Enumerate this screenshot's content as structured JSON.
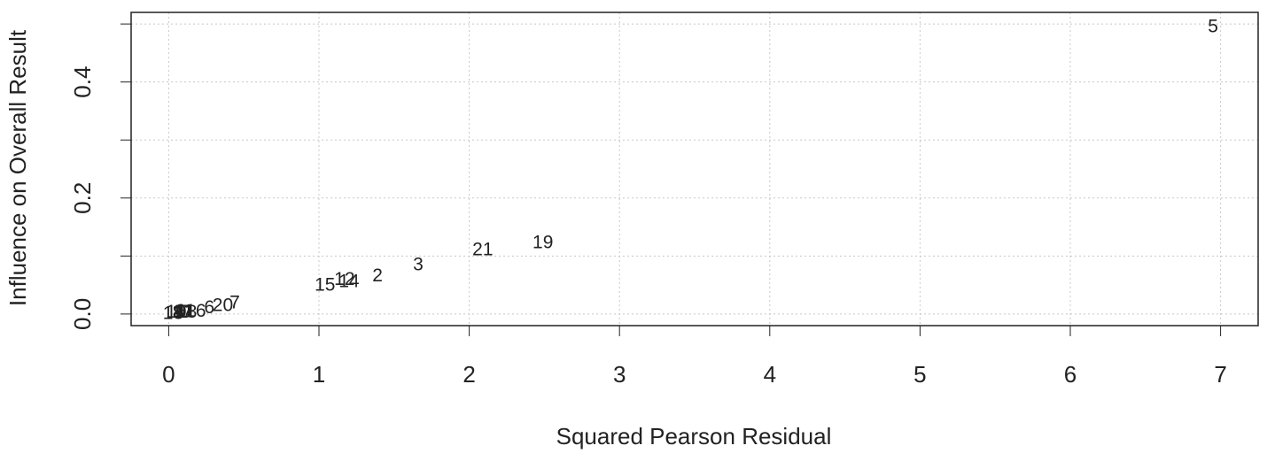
{
  "chart_data": {
    "type": "scatter",
    "xlabel": "Squared Pearson Residual",
    "ylabel": "Influence on Overall Result",
    "labels": [
      "5",
      "19",
      "21",
      "3",
      "2",
      "12",
      "14",
      "15",
      "7",
      "20",
      "6",
      "16",
      "1",
      "13",
      "11",
      "17",
      "9",
      "4",
      "8",
      "10",
      "18"
    ],
    "x": [
      6.95,
      2.49,
      2.09,
      1.66,
      1.39,
      1.17,
      1.2,
      1.04,
      0.44,
      0.36,
      0.27,
      0.18,
      0.14,
      0.12,
      0.1,
      0.09,
      0.08,
      0.07,
      0.06,
      0.05,
      0.03
    ],
    "values": [
      0.494,
      0.122,
      0.11,
      0.084,
      0.065,
      0.059,
      0.055,
      0.049,
      0.018,
      0.014,
      0.01,
      0.004,
      0.003,
      0.002,
      0.003,
      0.002,
      0.004,
      0.003,
      0.001,
      0.002,
      0.0
    ],
    "color": "#222222",
    "xlim": [
      -0.25,
      7.25
    ],
    "xticks": [
      0,
      1,
      2,
      3,
      4,
      5,
      6,
      7
    ],
    "ylim": [
      -0.02,
      0.52
    ],
    "yticks": [
      {
        "value": 0,
        "label": "0.0"
      },
      {
        "value": 0.1,
        "label": null
      },
      0.2,
      {
        "value": 0.3,
        "label": null
      },
      0.4,
      {
        "value": 0.5,
        "label": null
      }
    ],
    "grid": true
  }
}
